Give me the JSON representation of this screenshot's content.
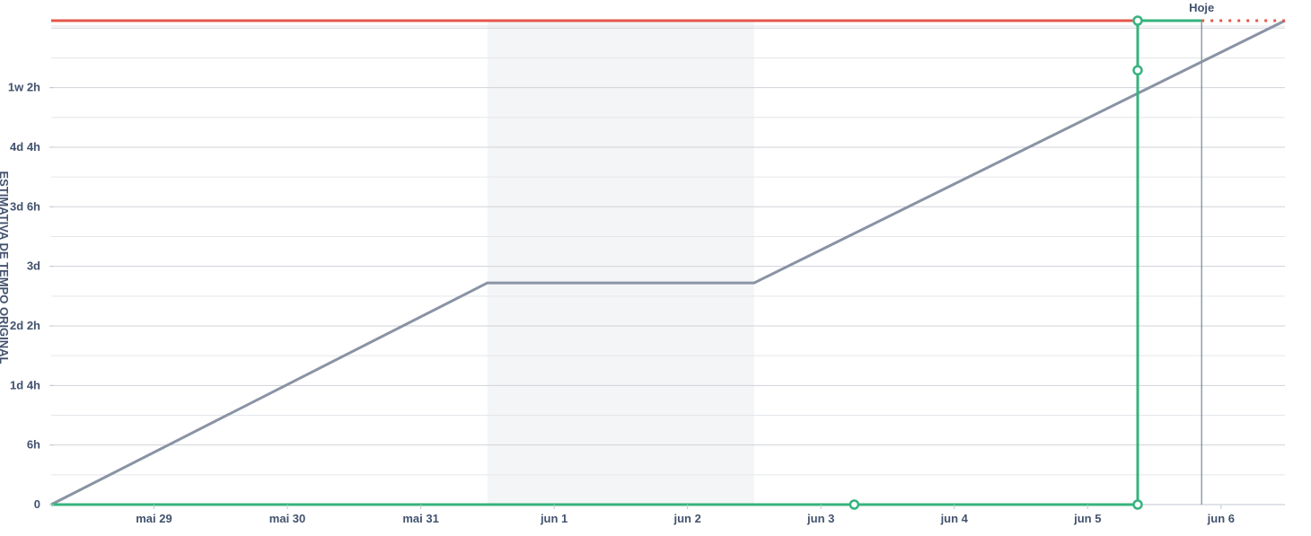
{
  "chart_data": {
    "type": "line",
    "title": "",
    "xlabel": "",
    "ylabel": "ESTIMATIVA DE TEMPO ORIGINAL",
    "today_label": "Hoje",
    "today": "2024-06-06T05:30",
    "x_range": [
      "2024-05-28T14:30",
      "2024-06-06T20:30"
    ],
    "non_working_period": [
      "2024-05-31T21:00",
      "2024-06-02T21:00"
    ],
    "y_unit": "hours",
    "y_range": [
      0,
      58.5
    ],
    "x_ticks": [
      {
        "label": "mai 29",
        "date": "2024-05-29T09:00"
      },
      {
        "label": "mai 30",
        "date": "2024-05-30T09:00"
      },
      {
        "label": "mai 31",
        "date": "2024-05-31T09:00"
      },
      {
        "label": "jun 1",
        "date": "2024-06-01T09:00"
      },
      {
        "label": "jun 2",
        "date": "2024-06-02T09:00"
      },
      {
        "label": "jun 3",
        "date": "2024-06-03T09:00"
      },
      {
        "label": "jun 4",
        "date": "2024-06-04T09:00"
      },
      {
        "label": "jun 5",
        "date": "2024-06-05T09:00"
      },
      {
        "label": "jun 6",
        "date": "2024-06-06T09:00"
      }
    ],
    "y_ticks": [
      {
        "label": "0",
        "value": 0
      },
      {
        "label": "6h",
        "value": 7.2
      },
      {
        "label": "1d 4h",
        "value": 14.4
      },
      {
        "label": "2d 2h",
        "value": 21.6
      },
      {
        "label": "3d",
        "value": 28.8
      },
      {
        "label": "3d 6h",
        "value": 36
      },
      {
        "label": "4d 4h",
        "value": 43.2
      },
      {
        "label": "1w 2h",
        "value": 50.4
      }
    ],
    "grid": true,
    "series": [
      {
        "name": "",
        "color": "#8993a4",
        "points": [
          {
            "x": "2024-05-28T14:30",
            "y": 0
          },
          {
            "x": "2024-05-31T21:00",
            "y": 26.8
          },
          {
            "x": "2024-06-02T21:00",
            "y": 26.8
          },
          {
            "x": "2024-06-06T20:30",
            "y": 58.5
          }
        ]
      },
      {
        "name": "",
        "color": "#36b37e",
        "points": [
          {
            "x": "2024-05-28T14:30",
            "y": 0
          },
          {
            "x": "2024-06-05T18:00",
            "y": 0
          },
          {
            "x": "2024-06-05T18:00",
            "y": 58.5
          },
          {
            "x": "2024-06-06T05:30",
            "y": 58.5
          }
        ],
        "markers": [
          {
            "x": "2024-06-03T15:00",
            "y": 0
          },
          {
            "x": "2024-06-05T18:00",
            "y": 0
          },
          {
            "x": "2024-06-05T18:00",
            "y": 52.5
          },
          {
            "x": "2024-06-05T18:00",
            "y": 58.5
          }
        ]
      },
      {
        "name": "",
        "color": "#e5574b",
        "points": [
          {
            "x": "2024-05-28T14:30",
            "y": 58.5
          },
          {
            "x": "2024-06-06T05:30",
            "y": 58.5
          }
        ],
        "projected": [
          {
            "x": "2024-06-06T05:30",
            "y": 58.5
          },
          {
            "x": "2024-06-06T20:30",
            "y": 58.5
          }
        ]
      }
    ]
  }
}
